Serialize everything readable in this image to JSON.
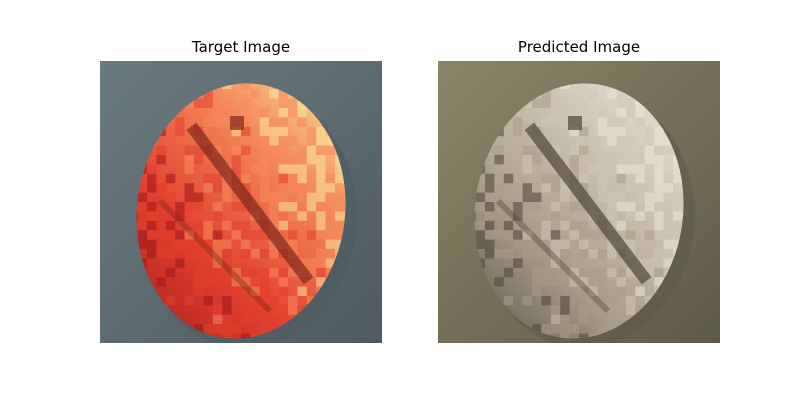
{
  "panels": [
    {
      "title": "Target Image",
      "palette": {
        "background": "#6a7b80",
        "background_shadow": "#4e5b60",
        "fruit_base": "#e2402e",
        "fruit_dark": "#9c1818",
        "fruit_light": "#f58a5c",
        "fruit_highlight": "#f7e79a",
        "stripe": "#7e2a1c"
      }
    },
    {
      "title": "Predicted Image",
      "palette": {
        "background": "#8a8668",
        "background_shadow": "#5e5a48",
        "fruit_base": "#a89d88",
        "fruit_dark": "#4a4438",
        "fruit_light": "#cfc6b4",
        "fruit_highlight": "#ece6d8",
        "stripe": "#4e463a"
      }
    }
  ]
}
